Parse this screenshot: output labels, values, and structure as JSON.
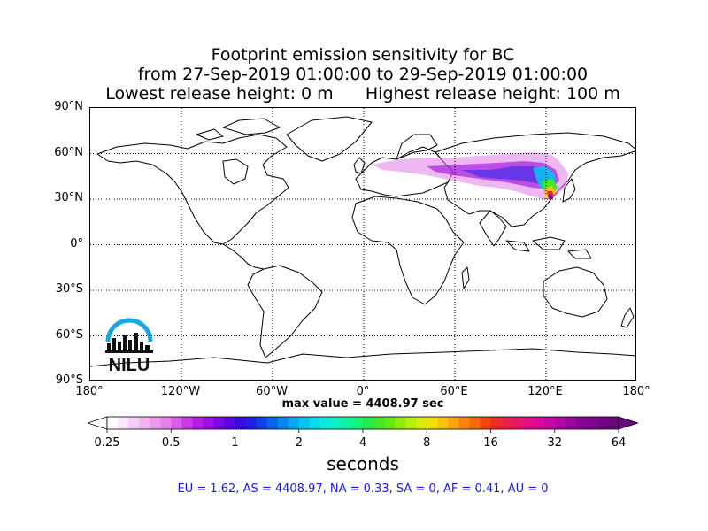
{
  "title": {
    "line1": "Footprint emission sensitivity for BC",
    "line2": "from 27-Sep-2019 01:00:00 to 29-Sep-2019 01:00:00",
    "line3": "Lowest release height: 0 m      Highest release height: 100 m"
  },
  "map": {
    "lat_labels": [
      "90°N",
      "60°N",
      "30°N",
      "0°",
      "30°S",
      "60°S",
      "90°S"
    ],
    "lon_labels": [
      "180°",
      "120°W",
      "60°W",
      "0°",
      "60°E",
      "120°E",
      "180°"
    ],
    "lat_values": [
      90,
      60,
      30,
      0,
      -30,
      -60,
      -90
    ],
    "lon_values": [
      -180,
      -120,
      -60,
      0,
      60,
      120,
      180
    ],
    "grid_style": "dotted",
    "plume_region": "Northern Asia, from about 10°E to 140°E, 40°N to 65°N, strongest over northeast China"
  },
  "max_value": "max value = 4408.97 sec",
  "colorbar": {
    "ticks": [
      "0.25",
      "0.5",
      "1",
      "2",
      "4",
      "8",
      "16",
      "32",
      "64"
    ],
    "unit": "seconds",
    "colors": [
      "#ffffff",
      "#fbe6fb",
      "#f6cdf6",
      "#f0b4f0",
      "#ec9aee",
      "#e680ea",
      "#dc5ee8",
      "#cb3be6",
      "#b51fe6",
      "#9a10e6",
      "#7a08e6",
      "#5a05e6",
      "#3a0ae6",
      "#2020e8",
      "#1040ea",
      "#0a62ee",
      "#0888f0",
      "#06a8f0",
      "#06c4ee",
      "#06dcea",
      "#08ecde",
      "#0af4c2",
      "#0cf6a0",
      "#10f67a",
      "#20ee50",
      "#40e828",
      "#68e810",
      "#90ec08",
      "#b6f006",
      "#d8ee06",
      "#f0e006",
      "#f8c408",
      "#faa60a",
      "#fa860c",
      "#f8660e",
      "#f64412",
      "#f42a2a",
      "#f01e4a",
      "#ec1468",
      "#e60e86",
      "#dc0a98",
      "#c808a0",
      "#b008a0",
      "#9a0898",
      "#860890",
      "#7a0888",
      "#6e0880",
      "#64087a"
    ]
  },
  "stats": "EU = 1.62,  AS = 4408.97,  NA = 0.33,  SA = 0,  AF = 0.41,  AU = 0",
  "logo_text": "NILU"
}
